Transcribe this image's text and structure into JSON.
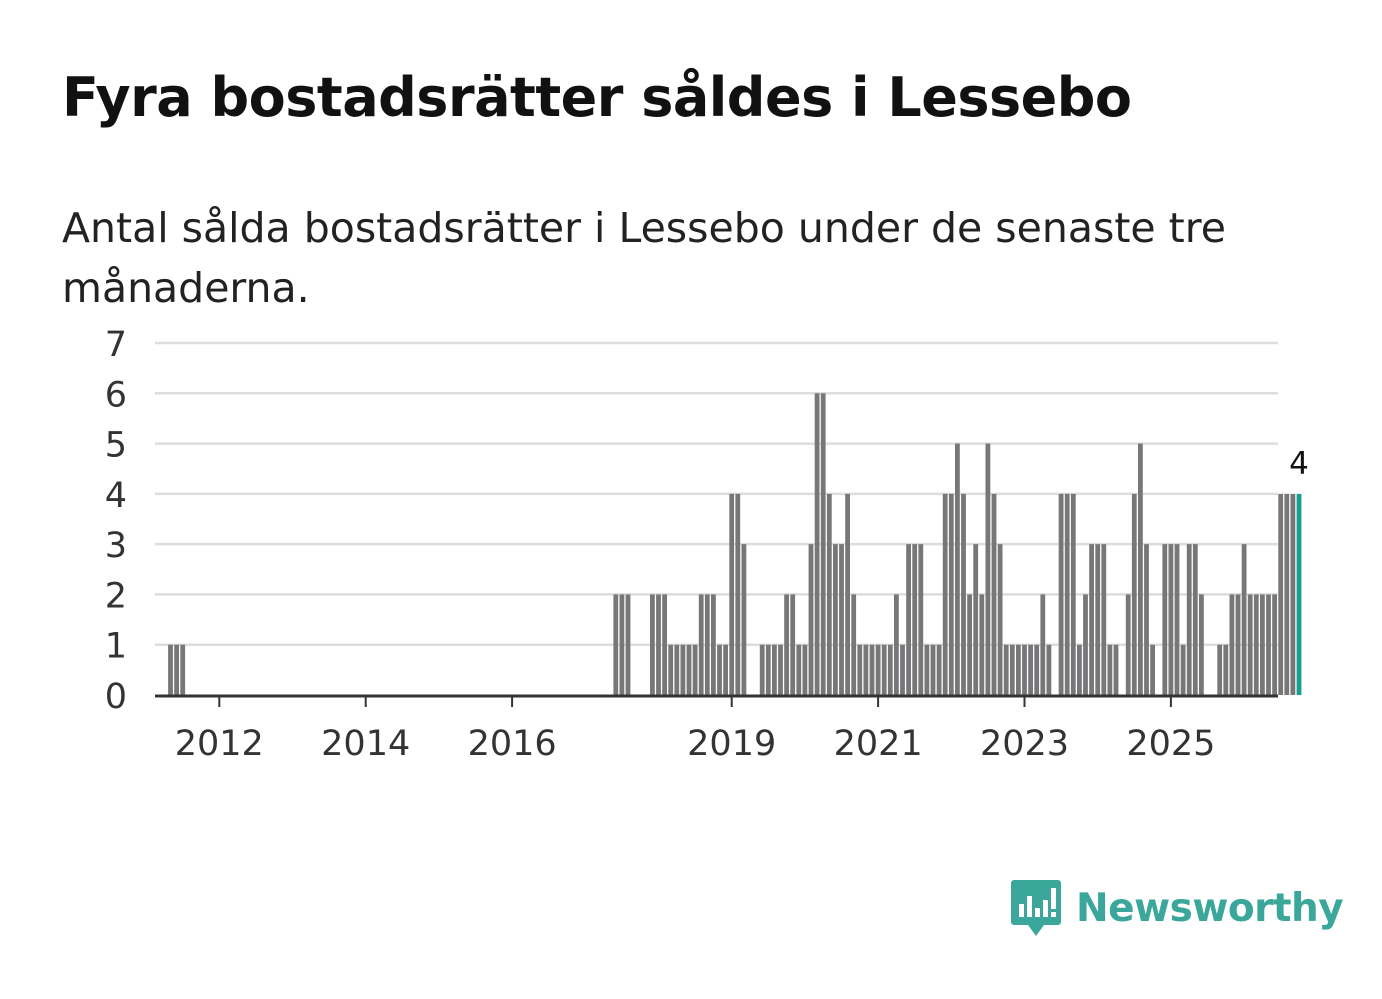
{
  "title": "Fyra bostadsrätter såldes i Lessebo",
  "subtitle": "Antal sålda bostadsrätter i Lessebo under de senaste tre månaderna.",
  "brand": {
    "name": "Newsworthy",
    "color": "#3aa79a",
    "icon": "newsworthy-logo-icon"
  },
  "colors": {
    "bar": "#777779",
    "highlight": "#169e90",
    "grid": "#dddddd",
    "axis": "#333333"
  },
  "chart_data": {
    "type": "bar",
    "title": "Fyra bostadsrätter såldes i Lessebo",
    "subtitle": "Antal sålda bostadsrätter i Lessebo under de senaste tre månaderna.",
    "xlabel": "",
    "ylabel": "",
    "ylim": [
      0,
      7
    ],
    "yticks": [
      "0",
      "1",
      "2",
      "3",
      "4",
      "5",
      "6",
      "7"
    ],
    "x_start": 2011.3333,
    "x_end": 2026.6667,
    "x_step_years": 0.0833333,
    "xticks": [
      {
        "label": "2012",
        "value": 2012
      },
      {
        "label": "2014",
        "value": 2014
      },
      {
        "label": "2016",
        "value": 2016
      },
      {
        "label": "2019",
        "value": 2019
      },
      {
        "label": "2021",
        "value": 2021
      },
      {
        "label": "2023",
        "value": 2023
      },
      {
        "label": "2025",
        "value": 2025
      }
    ],
    "grid": true,
    "legend": "none",
    "series": [
      {
        "name": "Antal sålda bostadsrätter",
        "values": [
          1,
          1,
          1,
          0,
          0,
          0,
          0,
          0,
          0,
          0,
          0,
          0,
          0,
          0,
          0,
          0,
          0,
          0,
          0,
          0,
          0,
          0,
          0,
          0,
          0,
          0,
          0,
          0,
          0,
          0,
          0,
          0,
          0,
          0,
          0,
          0,
          0,
          0,
          0,
          0,
          0,
          0,
          0,
          0,
          0,
          0,
          0,
          0,
          0,
          0,
          0,
          0,
          0,
          0,
          0,
          0,
          0,
          0,
          0,
          0,
          0,
          0,
          0,
          0,
          0,
          0,
          0,
          0,
          0,
          0,
          0,
          0,
          0,
          2,
          2,
          2,
          0,
          0,
          0,
          2,
          2,
          2,
          1,
          1,
          1,
          1,
          1,
          2,
          2,
          2,
          1,
          1,
          4,
          4,
          3,
          0,
          0,
          1,
          1,
          1,
          1,
          2,
          2,
          1,
          1,
          3,
          6,
          6,
          4,
          3,
          3,
          4,
          2,
          1,
          1,
          1,
          1,
          1,
          1,
          2,
          1,
          3,
          3,
          3,
          1,
          1,
          1,
          4,
          4,
          5,
          4,
          2,
          3,
          2,
          5,
          4,
          3,
          1,
          1,
          1,
          1,
          1,
          1,
          2,
          1,
          0,
          4,
          4,
          4,
          1,
          2,
          3,
          3,
          3,
          1,
          1,
          0,
          2,
          4,
          5,
          3,
          1,
          0,
          3,
          3,
          3,
          1,
          3,
          3,
          2,
          0,
          0,
          1,
          1,
          2,
          2,
          3,
          2,
          2,
          2,
          2,
          2,
          4,
          4,
          4,
          4
        ]
      }
    ],
    "highlight": {
      "index": 185,
      "label": "4"
    }
  }
}
